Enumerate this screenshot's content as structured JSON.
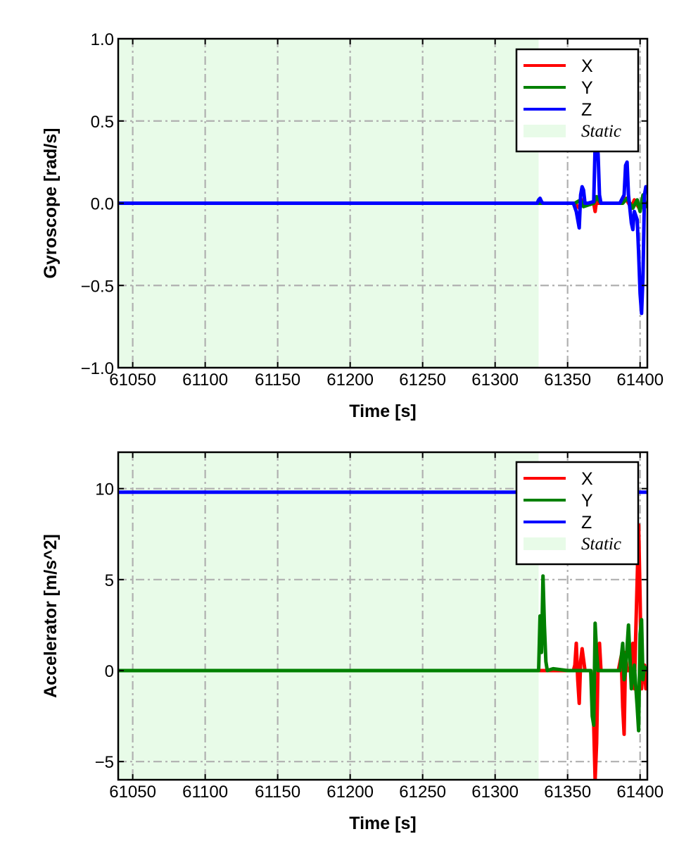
{
  "chart_data": [
    {
      "type": "line",
      "xlabel": "Time [s]",
      "ylabel": "Gyroscope [rad/s]",
      "xlim": [
        61040,
        61405
      ],
      "ylim": [
        -1.0,
        1.0
      ],
      "xticks": [
        61050,
        61100,
        61150,
        61200,
        61250,
        61300,
        61350,
        61400
      ],
      "xtick_labels": [
        "61050",
        "61100",
        "61150",
        "61200",
        "61250",
        "61300",
        "61350",
        "61400"
      ],
      "yticks": [
        -1.0,
        -0.5,
        0.0,
        0.5,
        1.0
      ],
      "ytick_labels": [
        "−1.0",
        "−0.5",
        "0.0",
        "0.5",
        "1.0"
      ],
      "grid": true,
      "legend_position": "top-right",
      "shaded_region": {
        "label": "Static",
        "x": [
          61040,
          61330
        ],
        "color": "#e8fbe8"
      },
      "series": [
        {
          "name": "X",
          "color": "#ff0000",
          "x": [
            61040,
            61330,
            61331,
            61332,
            61333,
            61355,
            61358,
            61360,
            61362,
            61368,
            61369,
            61370,
            61371,
            61372,
            61388,
            61390,
            61394,
            61396,
            61400,
            61402,
            61403,
            61405
          ],
          "y": [
            0,
            0,
            0.01,
            0,
            0,
            0,
            -0.03,
            0.02,
            0,
            0,
            -0.05,
            0.02,
            0,
            0,
            0,
            0.03,
            -0.03,
            0.02,
            -0.04,
            0.03,
            0,
            0
          ]
        },
        {
          "name": "Y",
          "color": "#008000",
          "x": [
            61040,
            61330,
            61355,
            61359,
            61361,
            61368,
            61370,
            61373,
            61388,
            61391,
            61395,
            61398,
            61400,
            61402,
            61404,
            61405
          ],
          "y": [
            0,
            0,
            0,
            0.02,
            -0.02,
            0,
            0.04,
            0,
            0,
            0.03,
            -0.03,
            0.02,
            -0.05,
            0.05,
            -0.02,
            0
          ]
        },
        {
          "name": "Z",
          "color": "#0000ff",
          "x": [
            61040,
            61329,
            61330,
            61331,
            61332,
            61333,
            61354,
            61356,
            61358,
            61359,
            61360,
            61361,
            61362,
            61364,
            61368,
            61369,
            61370,
            61371,
            61372,
            61373,
            61376,
            61386,
            61389,
            61390,
            61391,
            61392,
            61394,
            61395,
            61396,
            61398,
            61399,
            61400,
            61401,
            61402,
            61403,
            61404,
            61405
          ],
          "y": [
            0,
            0,
            0.02,
            0.03,
            0.01,
            0,
            0,
            -0.05,
            -0.15,
            0.05,
            0.1,
            0.08,
            0,
            0,
            0.01,
            0.35,
            0.38,
            0.3,
            0.05,
            0,
            0,
            0,
            0.05,
            0.23,
            0.25,
            0.05,
            -0.12,
            -0.16,
            -0.05,
            -0.1,
            -0.3,
            -0.55,
            -0.67,
            -0.45,
            0.05,
            0.1,
            0.08
          ]
        }
      ]
    },
    {
      "type": "line",
      "xlabel": "Time [s]",
      "ylabel": "Accelerator [m/s^2]",
      "xlim": [
        61040,
        61405
      ],
      "ylim": [
        -6,
        12
      ],
      "xticks": [
        61050,
        61100,
        61150,
        61200,
        61250,
        61300,
        61350,
        61400
      ],
      "xtick_labels": [
        "61050",
        "61100",
        "61150",
        "61200",
        "61250",
        "61300",
        "61350",
        "61400"
      ],
      "yticks": [
        -5,
        0,
        5,
        10
      ],
      "ytick_labels": [
        "−5",
        "0",
        "5",
        "10"
      ],
      "grid": true,
      "legend_position": "top-right",
      "shaded_region": {
        "label": "Static",
        "x": [
          61040,
          61330
        ],
        "color": "#e8fbe8"
      },
      "series": [
        {
          "name": "X",
          "color": "#ff0000",
          "x": [
            61040,
            61330,
            61354,
            61355,
            61356,
            61357,
            61358,
            61359,
            61360,
            61362,
            61366,
            61367,
            61368,
            61369,
            61370,
            61371,
            61372,
            61373,
            61385,
            61387,
            61388,
            61389,
            61390,
            61391,
            61393,
            61395,
            61396,
            61397,
            61398,
            61399,
            61400,
            61401,
            61402,
            61403,
            61404,
            61405
          ],
          "y": [
            0,
            0,
            0,
            0.3,
            1.5,
            -0.5,
            -1.8,
            0.5,
            1.2,
            0,
            0,
            -1.0,
            -3.0,
            -6.0,
            -4.0,
            0.5,
            1.5,
            0,
            0,
            0.8,
            -2.0,
            -3.5,
            1.0,
            0,
            0,
            1.5,
            -1.0,
            2.0,
            5.0,
            8.0,
            4.0,
            -1.0,
            0,
            0.3,
            -1.0,
            0
          ]
        },
        {
          "name": "Y",
          "color": "#008000",
          "x": [
            61040,
            61330,
            61331,
            61332,
            61333,
            61334,
            61335,
            61336,
            61340,
            61350,
            61366,
            61367,
            61368,
            61369,
            61370,
            61371,
            61372,
            61386,
            61388,
            61389,
            61390,
            61392,
            61394,
            61396,
            61398,
            61399,
            61400,
            61401,
            61402,
            61403,
            61405
          ],
          "y": [
            0,
            0,
            3.0,
            1.0,
            5.2,
            2.5,
            0.5,
            0,
            0.1,
            0,
            0,
            -2.5,
            -3.0,
            2.6,
            1.0,
            0,
            0,
            0,
            1.5,
            -0.5,
            0,
            2.5,
            -1.0,
            0.3,
            -2.0,
            -3.3,
            2.0,
            2.8,
            -0.5,
            0.2,
            0
          ]
        },
        {
          "name": "Z",
          "color": "#0000ff",
          "x": [
            61040,
            61405
          ],
          "y": [
            9.8,
            9.8
          ]
        }
      ]
    }
  ]
}
